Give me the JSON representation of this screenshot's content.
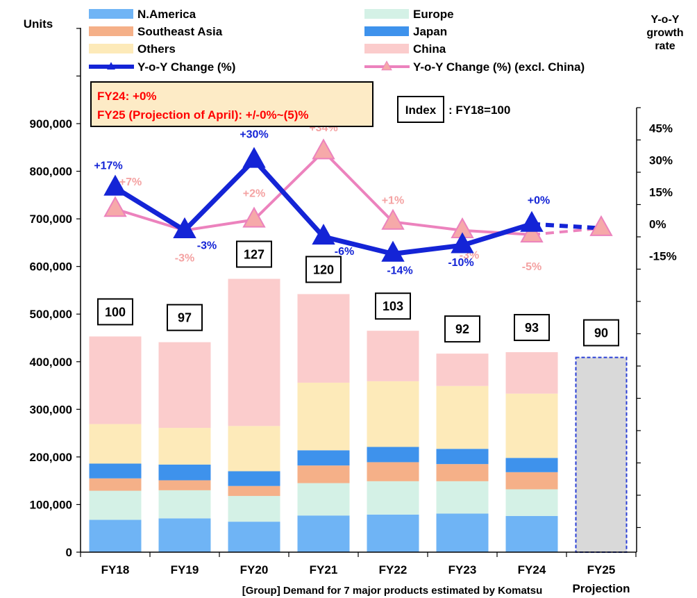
{
  "chart_data": {
    "type": "bar",
    "subtype": "stacked bar with dual-axis line overlay",
    "ylabel_left": "Units",
    "ylabel_right": "Y-o-Y growth rate",
    "ylim_left": [
      0,
      900000
    ],
    "yticks_left": [
      "0",
      "100,000",
      "200,000",
      "300,000",
      "400,000",
      "500,000",
      "600,000",
      "700,000",
      "800,000",
      "900,000"
    ],
    "ylim_right": [
      -15,
      45
    ],
    "yticks_right": [
      "-15%",
      "0%",
      "15%",
      "30%",
      "45%"
    ],
    "categories": [
      "FY18",
      "FY19",
      "FY20",
      "FY21",
      "FY22",
      "FY23",
      "FY24",
      "FY25"
    ],
    "category_sublabels": [
      "",
      "",
      "",
      "",
      "",
      "",
      "",
      "Projection"
    ],
    "stack_series": [
      {
        "name": "N.America",
        "color": "#6fb4f5",
        "values": [
          68000,
          71000,
          64000,
          77000,
          79000,
          81000,
          76000,
          null
        ]
      },
      {
        "name": "Europe",
        "color": "#d4f1e6",
        "values": [
          61000,
          59000,
          54000,
          68000,
          70000,
          68000,
          56000,
          null
        ]
      },
      {
        "name": "Southeast Asia",
        "color": "#f5b088",
        "values": [
          26000,
          21000,
          21000,
          37000,
          40000,
          36000,
          36000,
          null
        ]
      },
      {
        "name": "Japan",
        "color": "#3e92ec",
        "values": [
          31000,
          33000,
          31000,
          32000,
          32000,
          32000,
          30000,
          null
        ]
      },
      {
        "name": "Others",
        "color": "#fdeab9",
        "values": [
          83000,
          77000,
          95000,
          142000,
          138000,
          132000,
          135000,
          null
        ]
      },
      {
        "name": "China",
        "color": "#fbcccc",
        "values": [
          184000,
          180000,
          309000,
          186000,
          106000,
          68000,
          87000,
          null
        ]
      }
    ],
    "projection_bar": {
      "category": "FY25",
      "value": 409000,
      "color": "#d9d9d9",
      "border": "#2a3fd6"
    },
    "index_values": [
      100,
      97,
      127,
      120,
      103,
      92,
      93,
      90
    ],
    "line_series": [
      {
        "name": "Y-o-Y Change (%)",
        "color": "#1424d6",
        "values": [
          17,
          -3,
          30,
          -6,
          -14,
          -10,
          0,
          null
        ],
        "projection": [
          0,
          -2
        ],
        "labels": [
          "+17%",
          "-3%",
          "+30%",
          "-6%",
          "-14%",
          "-10%",
          "+0%",
          ""
        ]
      },
      {
        "name": "Y-o-Y Change (%) (excl. China)",
        "color": "#ec82bd",
        "marker_fill": "#f6a9a9",
        "values": [
          7,
          -3,
          2,
          34,
          1,
          -3,
          -5,
          null
        ],
        "projection": [
          -5,
          -2
        ],
        "labels": [
          "+7%",
          "-3%",
          "+2%",
          "+34%",
          "+1%",
          "-3%",
          "-5%",
          ""
        ]
      }
    ],
    "annotation_box": {
      "line1": "FY24: +0%",
      "line2": "FY25 (Projection of April): +/-0%~(5)%"
    },
    "index_note": {
      "box": "Index",
      "text": ": FY18=100"
    },
    "legend_placement": "top",
    "footnote": "[Group] Demand for 7 major products estimated by Komatsu",
    "grid": false
  }
}
